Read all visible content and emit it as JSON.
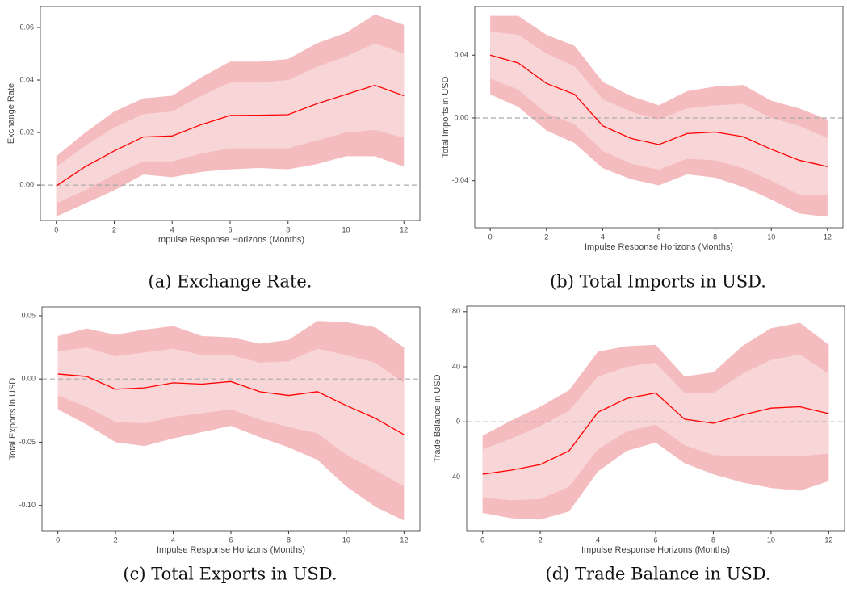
{
  "chart_data": [
    {
      "type": "line",
      "caption": "(a) Exchange Rate.",
      "xlabel": "Impulse Response Horizons (Months)",
      "ylabel": "Exchange Rate",
      "x": [
        0,
        1,
        2,
        3,
        4,
        5,
        6,
        7,
        8,
        9,
        10,
        11,
        12
      ],
      "values": [
        -0.0003,
        0.007,
        0.013,
        0.0183,
        0.0187,
        0.023,
        0.0265,
        0.0266,
        0.0268,
        0.031,
        0.0345,
        0.038,
        0.034
      ],
      "color": "#ff0000",
      "bands": [
        {
          "color": "#f4bcbe",
          "lower": [
            -0.012,
            -0.007,
            -0.002,
            0.004,
            0.003,
            0.005,
            0.006,
            0.0065,
            0.006,
            0.008,
            0.011,
            0.011,
            0.007
          ],
          "upper": [
            0.011,
            0.02,
            0.028,
            0.033,
            0.034,
            0.041,
            0.047,
            0.047,
            0.048,
            0.054,
            0.058,
            0.065,
            0.061
          ]
        },
        {
          "color": "#f8d5d6",
          "lower": [
            -0.007,
            -0.002,
            0.004,
            0.009,
            0.009,
            0.012,
            0.014,
            0.014,
            0.014,
            0.017,
            0.02,
            0.021,
            0.018
          ],
          "upper": [
            0.007,
            0.015,
            0.022,
            0.027,
            0.028,
            0.034,
            0.039,
            0.039,
            0.04,
            0.045,
            0.049,
            0.054,
            0.05
          ]
        }
      ],
      "hline": 0,
      "xlim": [
        -0.55,
        12.55
      ],
      "ylim": [
        -0.0135,
        0.068
      ],
      "xticks": [
        0,
        2,
        4,
        6,
        8,
        10,
        12
      ],
      "yticks": [
        {
          "value": 0,
          "label": "0.00"
        },
        0.02,
        0.04,
        0.06
      ]
    },
    {
      "type": "line",
      "caption": "(b) Total Imports in USD.",
      "xlabel": "Impulse Response Horizons (Months)",
      "ylabel": "Total Imports in USD",
      "x": [
        0,
        1,
        2,
        3,
        4,
        5,
        6,
        7,
        8,
        9,
        10,
        11,
        12
      ],
      "values": [
        0.04,
        0.035,
        0.022,
        0.015,
        -0.005,
        -0.013,
        -0.017,
        -0.01,
        -0.009,
        -0.012,
        -0.02,
        -0.027,
        -0.031
      ],
      "color": "#ff0000",
      "bands": [
        {
          "color": "#f4bcbe",
          "lower": [
            0.015,
            0.007,
            -0.008,
            -0.016,
            -0.032,
            -0.039,
            -0.043,
            -0.036,
            -0.038,
            -0.044,
            -0.052,
            -0.061,
            -0.063
          ],
          "upper": [
            0.065,
            0.065,
            0.053,
            0.046,
            0.023,
            0.014,
            0.008,
            0.017,
            0.02,
            0.021,
            0.011,
            0.006,
            -0.001
          ]
        },
        {
          "color": "#f8d5d6",
          "lower": [
            0.025,
            0.018,
            0.003,
            -0.004,
            -0.021,
            -0.029,
            -0.033,
            -0.026,
            -0.027,
            -0.032,
            -0.04,
            -0.049,
            -0.049
          ],
          "upper": [
            0.055,
            0.053,
            0.041,
            0.033,
            0.012,
            0.004,
            -0.001,
            0.006,
            0.008,
            0.009,
            0.0,
            -0.005,
            -0.013
          ]
        }
      ],
      "hline": 0,
      "xlim": [
        -0.55,
        12.55
      ],
      "ylim": [
        -0.07,
        0.071
      ],
      "xticks": [
        0,
        2,
        4,
        6,
        8,
        10,
        12
      ],
      "yticks": [
        -0.04,
        {
          "value": 0,
          "label": "0.00"
        },
        0.04
      ]
    },
    {
      "type": "line",
      "caption": "(c) Total Exports in USD.",
      "xlabel": "Impulse Response Horizons (Months)",
      "ylabel": "Total Exports in USD",
      "x": [
        0,
        1,
        2,
        3,
        4,
        5,
        6,
        7,
        8,
        9,
        10,
        11,
        12
      ],
      "values": [
        0.004,
        0.002,
        -0.008,
        -0.007,
        -0.003,
        -0.004,
        -0.002,
        -0.01,
        -0.013,
        -0.01,
        -0.021,
        -0.031,
        -0.044
      ],
      "color": "#ff0000",
      "bands": [
        {
          "color": "#f4bcbe",
          "lower": [
            -0.024,
            -0.036,
            -0.05,
            -0.053,
            -0.047,
            -0.042,
            -0.037,
            -0.046,
            -0.054,
            -0.064,
            -0.085,
            -0.101,
            -0.112
          ],
          "upper": [
            0.034,
            0.04,
            0.035,
            0.039,
            0.042,
            0.034,
            0.033,
            0.028,
            0.031,
            0.046,
            0.045,
            0.041,
            0.025
          ]
        },
        {
          "color": "#f8d5d6",
          "lower": [
            -0.013,
            -0.022,
            -0.034,
            -0.035,
            -0.03,
            -0.027,
            -0.024,
            -0.032,
            -0.038,
            -0.043,
            -0.06,
            -0.072,
            -0.085
          ],
          "upper": [
            0.022,
            0.025,
            0.018,
            0.021,
            0.024,
            0.019,
            0.019,
            0.013,
            0.014,
            0.024,
            0.019,
            0.013,
            -0.003
          ]
        }
      ],
      "hline": 0,
      "xlim": [
        -0.55,
        12.55
      ],
      "ylim": [
        -0.12,
        0.057
      ],
      "xticks": [
        0,
        2,
        4,
        6,
        8,
        10,
        12
      ],
      "yticks": [
        {
          "value": -0.1,
          "label": "-0.10"
        },
        -0.05,
        {
          "value": 0,
          "label": "0.00"
        },
        0.05
      ]
    },
    {
      "type": "line",
      "caption": "(d) Trade Balance in USD.",
      "xlabel": "Impulse Response Horizons (Months)",
      "ylabel": "Trade Balance in USD",
      "x": [
        0,
        1,
        2,
        3,
        4,
        5,
        6,
        7,
        8,
        9,
        10,
        11,
        12
      ],
      "values": [
        -38,
        -35,
        -31,
        -21,
        7,
        17,
        21,
        2,
        -1,
        5,
        10,
        11,
        6
      ],
      "color": "#ff0000",
      "bands": [
        {
          "color": "#f4bcbe",
          "lower": [
            -66,
            -70,
            -71,
            -65,
            -36,
            -21,
            -15,
            -30,
            -38,
            -44,
            -48,
            -50,
            -43
          ],
          "upper": [
            -10,
            1,
            11,
            23,
            51,
            55,
            56,
            33,
            36,
            55,
            68,
            72,
            56
          ]
        },
        {
          "color": "#f8d5d6",
          "lower": [
            -55,
            -57,
            -56,
            -47,
            -20,
            -7,
            -2,
            -17,
            -24,
            -25,
            -25,
            -25,
            -23
          ],
          "upper": [
            -20,
            -12,
            -3,
            8,
            33,
            40,
            43,
            21,
            21,
            35,
            45,
            49,
            35
          ]
        }
      ],
      "hline": 0,
      "xlim": [
        -0.55,
        12.55
      ],
      "ylim": [
        -79,
        84
      ],
      "xticks": [
        0,
        2,
        4,
        6,
        8,
        10,
        12
      ],
      "yticks": [
        -40,
        0,
        40,
        80
      ]
    }
  ]
}
